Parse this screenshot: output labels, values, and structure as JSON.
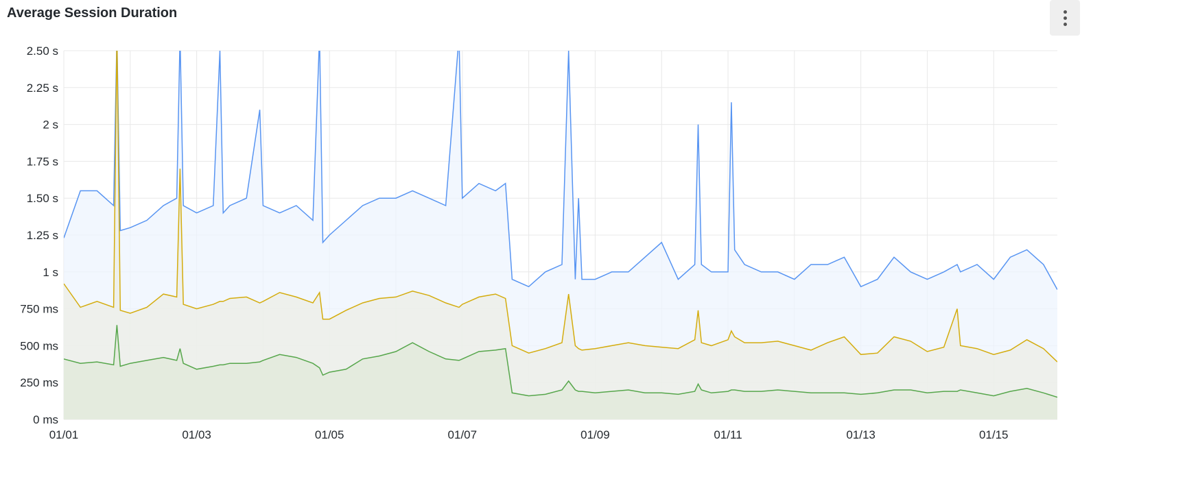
{
  "panel": {
    "title": "Average Session Duration",
    "menu_icon": "kebab-vertical-icon"
  },
  "chart_data": {
    "type": "area",
    "title": "Average Session Duration",
    "xlabel": "",
    "ylabel": "",
    "y_unit": "ms",
    "ylim": [
      0,
      2500
    ],
    "xlim": [
      "01/01 00:00",
      "01/15 23:00"
    ],
    "grid": true,
    "legend": "none",
    "y_ticks": [
      {
        "value": 0,
        "label": "0 ms"
      },
      {
        "value": 250,
        "label": "250 ms"
      },
      {
        "value": 500,
        "label": "500 ms"
      },
      {
        "value": 750,
        "label": "750 ms"
      },
      {
        "value": 1000,
        "label": "1 s"
      },
      {
        "value": 1250,
        "label": "1.25 s"
      },
      {
        "value": 1500,
        "label": "1.50 s"
      },
      {
        "value": 1750,
        "label": "1.75 s"
      },
      {
        "value": 2000,
        "label": "2 s"
      },
      {
        "value": 2250,
        "label": "2.25 s"
      },
      {
        "value": 2500,
        "label": "2.50 s"
      }
    ],
    "x_ticks": [
      "01/01",
      "01/03",
      "01/05",
      "01/07",
      "01/09",
      "01/11",
      "01/13",
      "01/15"
    ],
    "x": [
      "01/01 00:00",
      "01/01 06:00",
      "01/01 12:00",
      "01/01 18:00",
      "01/01 19:12",
      "01/01 20:24",
      "01/02 00:00",
      "01/02 06:00",
      "01/02 12:00",
      "01/02 16:48",
      "01/02 18:00",
      "01/02 19:12",
      "01/03 00:00",
      "01/03 06:00",
      "01/03 08:24",
      "01/03 09:36",
      "01/03 12:00",
      "01/03 18:00",
      "01/03 22:48",
      "01/04 00:00",
      "01/04 06:00",
      "01/04 12:00",
      "01/04 18:00",
      "01/04 20:24",
      "01/04 21:36",
      "01/05 00:00",
      "01/05 06:00",
      "01/05 12:00",
      "01/05 18:00",
      "01/06 00:00",
      "01/06 06:00",
      "01/06 12:00",
      "01/06 18:00",
      "01/06 22:48",
      "01/07 00:00",
      "01/07 06:00",
      "01/07 12:00",
      "01/07 15:36",
      "01/07 18:00",
      "01/08 00:00",
      "01/08 06:00",
      "01/08 12:00",
      "01/08 14:24",
      "01/08 16:48",
      "01/08 18:00",
      "01/08 19:12",
      "01/09 00:00",
      "01/09 06:00",
      "01/09 12:00",
      "01/09 18:00",
      "01/10 00:00",
      "01/10 06:00",
      "01/10 12:00",
      "01/10 13:12",
      "01/10 14:24",
      "01/10 18:00",
      "01/11 00:00",
      "01/11 01:12",
      "01/11 02:24",
      "01/11 06:00",
      "01/11 12:00",
      "01/11 18:00",
      "01/12 00:00",
      "01/12 06:00",
      "01/12 12:00",
      "01/12 18:00",
      "01/13 00:00",
      "01/13 06:00",
      "01/13 12:00",
      "01/13 18:00",
      "01/14 00:00",
      "01/14 06:00",
      "01/14 10:48",
      "01/14 12:00",
      "01/14 18:00",
      "01/15 00:00",
      "01/15 06:00",
      "01/15 12:00",
      "01/15 18:00",
      "01/15 23:00"
    ],
    "series": [
      {
        "color": "#5794f2",
        "fill": "#eef4fd",
        "values": [
          1230,
          1550,
          1550,
          1450,
          2600,
          1280,
          1300,
          1350,
          1450,
          1500,
          2600,
          1450,
          1400,
          1450,
          2500,
          1400,
          1450,
          1500,
          2100,
          1450,
          1400,
          1450,
          1350,
          2600,
          1200,
          1250,
          1350,
          1450,
          1500,
          1500,
          1550,
          1500,
          1450,
          2600,
          1500,
          1600,
          1550,
          1600,
          950,
          900,
          1000,
          1050,
          2500,
          950,
          1500,
          950,
          950,
          1000,
          1000,
          1100,
          1200,
          950,
          1050,
          2000,
          1050,
          1000,
          1000,
          2150,
          1150,
          1050,
          1000,
          1000,
          950,
          1050,
          1050,
          1100,
          900,
          950,
          1100,
          1000,
          950,
          1000,
          1050,
          1000,
          1050,
          950,
          1100,
          1150,
          1050,
          880
        ]
      },
      {
        "color": "#d4ac0d",
        "fill": "#eceee6",
        "values": [
          920,
          760,
          800,
          760,
          2600,
          740,
          720,
          760,
          850,
          830,
          1700,
          780,
          750,
          780,
          800,
          800,
          820,
          830,
          790,
          800,
          860,
          830,
          790,
          860,
          680,
          680,
          740,
          790,
          820,
          830,
          870,
          840,
          790,
          760,
          780,
          830,
          850,
          820,
          500,
          450,
          480,
          520,
          850,
          500,
          480,
          470,
          480,
          500,
          520,
          500,
          490,
          480,
          540,
          740,
          520,
          500,
          540,
          600,
          560,
          520,
          520,
          530,
          500,
          470,
          520,
          560,
          440,
          450,
          560,
          530,
          460,
          490,
          750,
          500,
          480,
          440,
          470,
          540,
          480,
          390
        ]
      },
      {
        "color": "#56a64b",
        "fill": "#e0e9d9",
        "values": [
          410,
          380,
          390,
          370,
          640,
          360,
          380,
          400,
          420,
          400,
          480,
          380,
          340,
          360,
          370,
          370,
          380,
          380,
          390,
          400,
          440,
          420,
          380,
          350,
          300,
          320,
          340,
          410,
          430,
          460,
          520,
          460,
          410,
          400,
          410,
          460,
          470,
          480,
          180,
          160,
          170,
          200,
          260,
          200,
          190,
          190,
          180,
          190,
          200,
          180,
          180,
          170,
          190,
          240,
          200,
          180,
          190,
          200,
          200,
          190,
          190,
          200,
          190,
          180,
          180,
          180,
          170,
          180,
          200,
          200,
          180,
          190,
          190,
          200,
          180,
          160,
          190,
          210,
          180,
          150
        ]
      }
    ]
  }
}
